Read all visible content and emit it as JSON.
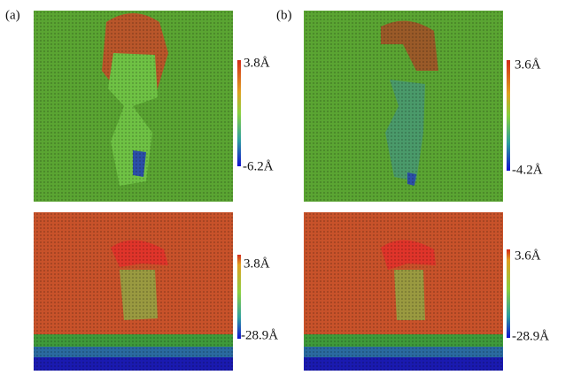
{
  "panels": [
    {
      "label": "(a)",
      "views": [
        {
          "max": "3.8Å",
          "min": "-6.2Å"
        },
        {
          "max": "3.8Å",
          "min": "-28.9Å"
        }
      ]
    },
    {
      "label": "(b)",
      "views": [
        {
          "max": "3.6Å",
          "min": "-4.2Å"
        },
        {
          "max": "3.6Å",
          "min": "-28.9Å"
        }
      ]
    }
  ]
}
